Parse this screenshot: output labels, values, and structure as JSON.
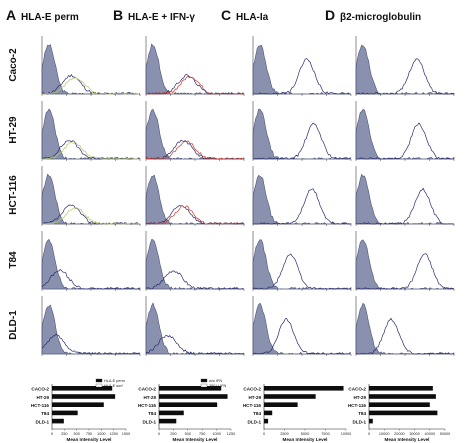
{
  "panels": [
    {
      "letter": "A",
      "title": "HLA-E perm"
    },
    {
      "letter": "B",
      "title": "HLA-E + IFN-γ"
    },
    {
      "letter": "C",
      "title": "HLA-Ia"
    },
    {
      "letter": "D",
      "title": "β2-microglobulin"
    }
  ],
  "cell_lines": [
    "Caco-2",
    "HT-29",
    "HCT-116",
    "T84",
    "DLD-1"
  ],
  "colors": {
    "isotype_fill": "#7d86a6",
    "isotype_edge": "#3b4470",
    "stain_line": "#2a2f6e",
    "hla_e_line": "#b8c86a",
    "ifn_line": "#c83a2a",
    "bar": "#0d0d0d"
  },
  "histograms": {
    "comment_values": "stain peak position as fraction of log-intensity axis, per panel per cell line",
    "peak_positions": [
      [
        0.3,
        0.28,
        0.3,
        0.18,
        0.14
      ],
      [
        0.42,
        0.38,
        0.36,
        0.28,
        0.22
      ],
      [
        0.55,
        0.62,
        0.6,
        0.38,
        0.34
      ],
      [
        0.62,
        0.64,
        0.68,
        0.7,
        0.36
      ]
    ],
    "tick_labels": [
      "0",
      "1",
      "2",
      "3",
      "4"
    ]
  },
  "chart_data": [
    {
      "type": "bar",
      "orientation": "horizontal",
      "categories": [
        "CACO-2",
        "HT-29",
        "HCT-116",
        "T84",
        "DLD-1"
      ],
      "series": [
        {
          "name": "HLA-E perm",
          "values": [
            1220,
            1280,
            1050,
            520,
            240
          ]
        }
      ],
      "legend": [
        "HLA-E perm",
        "HLA-E surf"
      ],
      "xlabel": "Mean Intensity Level",
      "xticks": [
        "0",
        "250",
        "500",
        "750",
        "1000",
        "1250",
        "1500"
      ],
      "xlim": [
        0,
        1500
      ]
    },
    {
      "type": "bar",
      "orientation": "horizontal",
      "categories": [
        "CACO-2",
        "HT-29",
        "HCT-116",
        "T84",
        "DLD-1"
      ],
      "series": [
        {
          "name": "250 U IFN",
          "values": [
            1080,
            1190,
            1010,
            430,
            300
          ]
        }
      ],
      "legend": [
        "w/o IFN",
        "250 U IFN"
      ],
      "xlabel": "Mean Intensity Level",
      "xticks": [
        "0",
        "250",
        "500",
        "750",
        "1000",
        "1250"
      ],
      "xlim": [
        0,
        1250
      ]
    },
    {
      "type": "bar",
      "orientation": "horizontal",
      "categories": [
        "CACO-2",
        "HT-29",
        "HCT-116",
        "T84",
        "DLD-1"
      ],
      "series": [
        {
          "name": "HLA-Ia",
          "values": [
            9700,
            6300,
            4100,
            1000,
            500
          ]
        }
      ],
      "xlabel": "Mean Intensity Level",
      "xticks": [
        "0",
        "2500",
        "5000",
        "7500",
        "10000"
      ],
      "xlim": [
        0,
        10000
      ]
    },
    {
      "type": "bar",
      "orientation": "horizontal",
      "categories": [
        "CACO-2",
        "HT-29",
        "HCT-116",
        "T84",
        "DLD-1"
      ],
      "series": [
        {
          "name": "β2-microglobulin",
          "values": [
            42000,
            44000,
            40000,
            45000,
            2500
          ]
        }
      ],
      "xlabel": "Mean Intensity Level",
      "xticks": [
        "0",
        "10000",
        "20000",
        "30000",
        "40000",
        "50000"
      ],
      "xlim": [
        0,
        50000
      ]
    }
  ]
}
